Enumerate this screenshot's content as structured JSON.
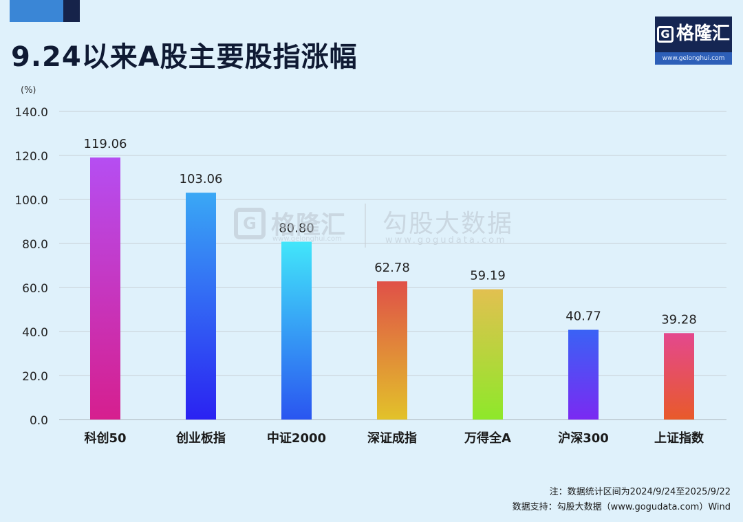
{
  "header": {
    "title": "9.24以来A股主要股指涨幅",
    "logo_text": "格隆汇",
    "logo_url": "www.gelonghui.com",
    "logo_glyph": "G"
  },
  "watermark": {
    "brand1": "格隆汇",
    "brand1_url": "www.gelonghui.com",
    "brand2": "勾股大数据",
    "brand2_url": "www.gogudata.com"
  },
  "chart_data": {
    "type": "bar",
    "title": "9.24以来A股主要股指涨幅",
    "ylabel": "(%)",
    "xlabel": "",
    "ylim": [
      0,
      140
    ],
    "yticks": [
      0,
      20,
      40,
      60,
      80,
      100,
      120,
      140
    ],
    "ytick_labels": [
      "0.0",
      "20.0",
      "40.0",
      "60.0",
      "80.0",
      "100.0",
      "120.0",
      "140.0"
    ],
    "grid": true,
    "categories": [
      "科创50",
      "创业板指",
      "中证2000",
      "深证成指",
      "万得全A",
      "沪深300",
      "上证指数"
    ],
    "values": [
      119.06,
      103.06,
      80.8,
      62.78,
      59.19,
      40.77,
      39.28
    ],
    "value_labels": [
      "119.06",
      "103.06",
      "80.80",
      "62.78",
      "59.19",
      "40.77",
      "39.28"
    ],
    "bar_gradients": [
      [
        "#b54ef2",
        "#d61f8e"
      ],
      [
        "#3aa8f5",
        "#2a22f2"
      ],
      [
        "#42e6fa",
        "#2a55f0"
      ],
      [
        "#e05048",
        "#e2c22a"
      ],
      [
        "#e2c050",
        "#8ee82a"
      ],
      [
        "#3a62f5",
        "#7a2af2"
      ],
      [
        "#e4488e",
        "#e85a2a"
      ]
    ]
  },
  "footer": {
    "note": "注：数据统计区间为2024/9/24至2025/9/22",
    "source": "数据支持：勾股大数据（www.gogudata.com）Wind"
  }
}
